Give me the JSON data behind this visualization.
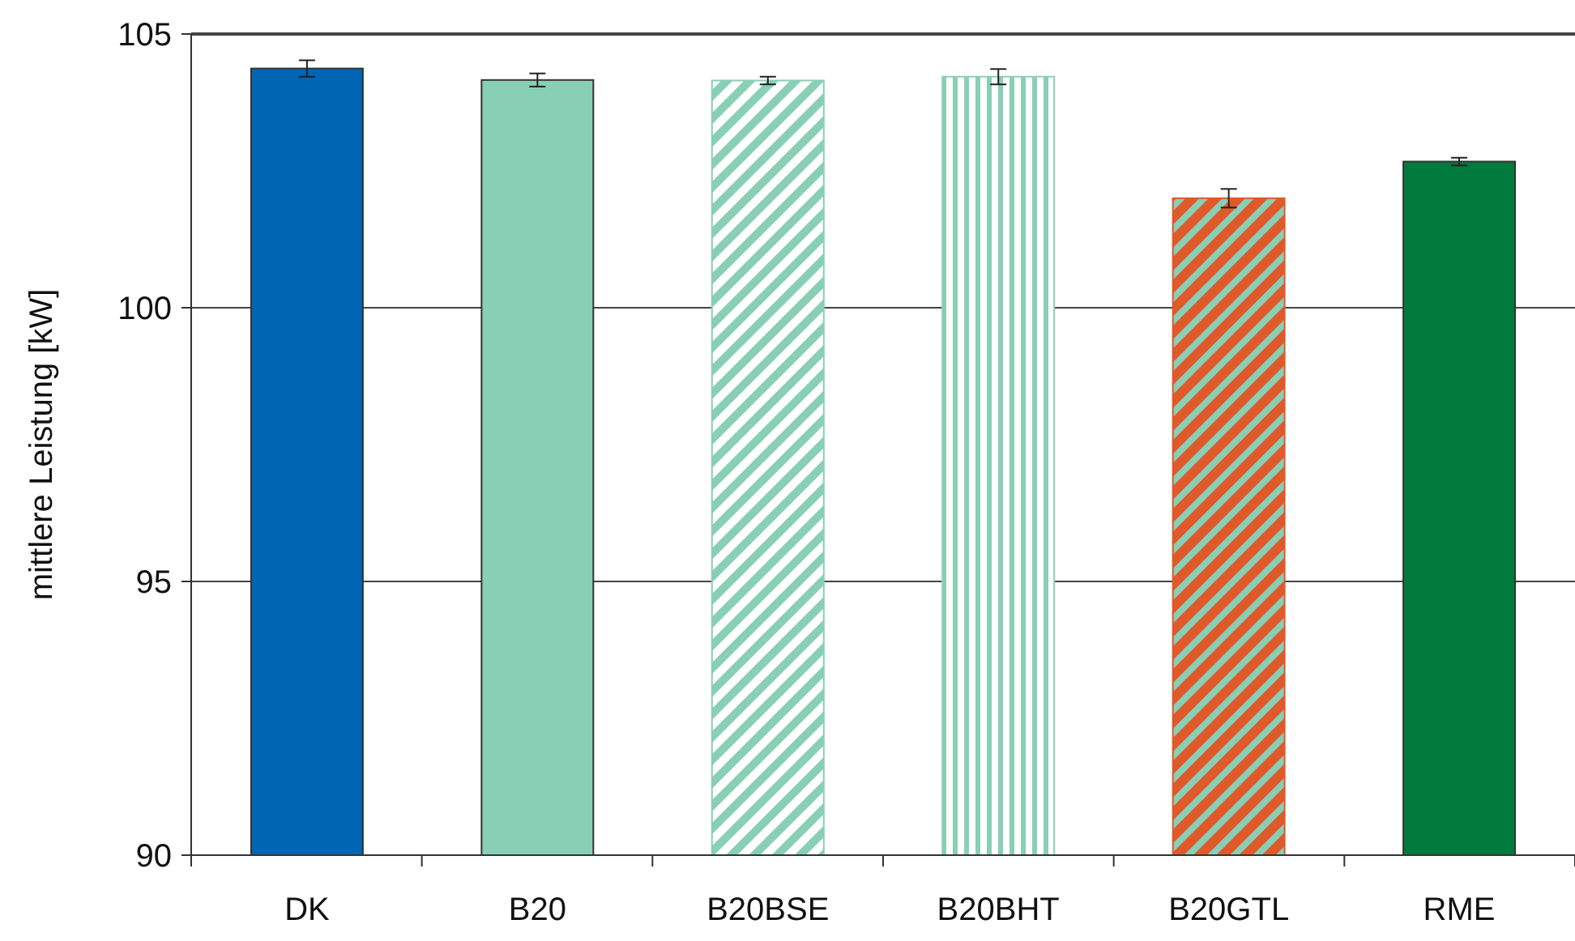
{
  "chart_data": {
    "type": "bar",
    "ylabel": "mittlere Leistung [kW]",
    "categories": [
      "DK",
      "B20",
      "B20BSE",
      "B20BHT",
      "B20GTL",
      "RME"
    ],
    "values": [
      104.37,
      104.16,
      104.15,
      104.22,
      102.0,
      102.67
    ],
    "errors": [
      0.15,
      0.12,
      0.07,
      0.14,
      0.17,
      0.07
    ],
    "colors": [
      "#0066b3",
      "#88cfb6",
      "#88cfb6",
      "#88cfb6",
      "#e0592a",
      "#007a3d"
    ],
    "ylim": [
      90,
      105
    ],
    "yticks": [
      90,
      95,
      100,
      105
    ],
    "grid": "y"
  }
}
